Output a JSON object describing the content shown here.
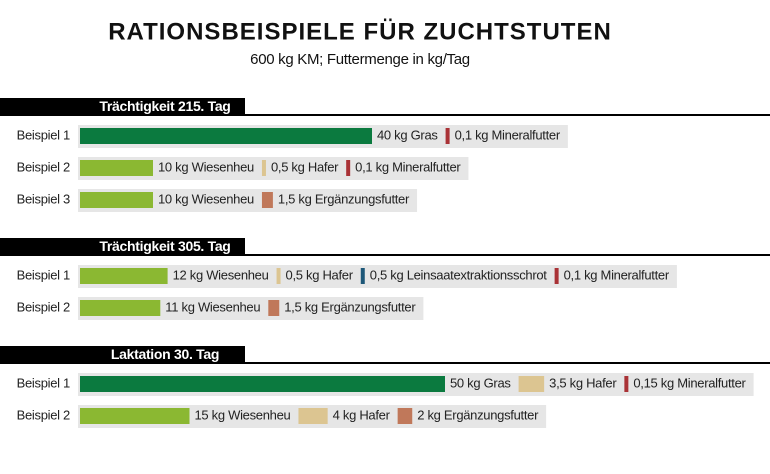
{
  "chart_data": {
    "type": "ration-bars",
    "title": "RATIONSBEISPIELE FÜR ZUCHTSTUTEN",
    "subtitle": "600 kg KM; Futtermenge in kg/Tag",
    "groups": [
      {
        "title": "Trächtigkeit 215. Tag",
        "rows": [
          {
            "label": "Beispiel 1",
            "items": [
              {
                "value": 40,
                "value_label": "40 kg Gras",
                "color": "#0b7a3f"
              },
              {
                "value": 0.1,
                "value_label": "0,1 kg Mineralfutter",
                "color": "#a93236"
              }
            ]
          },
          {
            "label": "Beispiel 2",
            "items": [
              {
                "value": 10,
                "value_label": "10 kg Wiesenheu",
                "color": "#8bb832"
              },
              {
                "value": 0.5,
                "value_label": "0,5 kg Hafer",
                "color": "#dcc591"
              },
              {
                "value": 0.1,
                "value_label": "0,1 kg Mineralfutter",
                "color": "#a93236"
              }
            ]
          },
          {
            "label": "Beispiel 3",
            "items": [
              {
                "value": 10,
                "value_label": "10 kg Wiesenheu",
                "color": "#8bb832"
              },
              {
                "value": 1.5,
                "value_label": "1,5 kg Ergänzungsfutter",
                "color": "#c0785a"
              }
            ]
          }
        ]
      },
      {
        "title": "Trächtigkeit 305. Tag",
        "rows": [
          {
            "label": "Beispiel 1",
            "items": [
              {
                "value": 12,
                "value_label": "12 kg Wiesenheu",
                "color": "#8bb832"
              },
              {
                "value": 0.5,
                "value_label": "0,5 kg Hafer",
                "color": "#dcc591"
              },
              {
                "value": 0.5,
                "value_label": "0,5 kg Leinsaatextraktionsschrot",
                "color": "#1d5778"
              },
              {
                "value": 0.1,
                "value_label": "0,1 kg Mineralfutter",
                "color": "#a93236"
              }
            ]
          },
          {
            "label": "Beispiel 2",
            "items": [
              {
                "value": 11,
                "value_label": "11 kg Wiesenheu",
                "color": "#8bb832"
              },
              {
                "value": 1.5,
                "value_label": "1,5 kg Ergänzungsfutter",
                "color": "#c0785a"
              }
            ]
          }
        ]
      },
      {
        "title": "Laktation 30. Tag",
        "rows": [
          {
            "label": "Beispiel 1",
            "items": [
              {
                "value": 50,
                "value_label": "50 kg Gras",
                "color": "#0b7a3f"
              },
              {
                "value": 3.5,
                "value_label": "3,5 kg Hafer",
                "color": "#dcc591"
              },
              {
                "value": 0.15,
                "value_label": "0,15 kg Mineralfutter",
                "color": "#a93236"
              }
            ]
          },
          {
            "label": "Beispiel 2",
            "items": [
              {
                "value": 15,
                "value_label": "15 kg Wiesenheu",
                "color": "#8bb832"
              },
              {
                "value": 4,
                "value_label": "4 kg Hafer",
                "color": "#dcc591"
              },
              {
                "value": 2,
                "value_label": "2 kg Ergänzungsfutter",
                "color": "#c0785a"
              }
            ]
          }
        ]
      }
    ]
  }
}
